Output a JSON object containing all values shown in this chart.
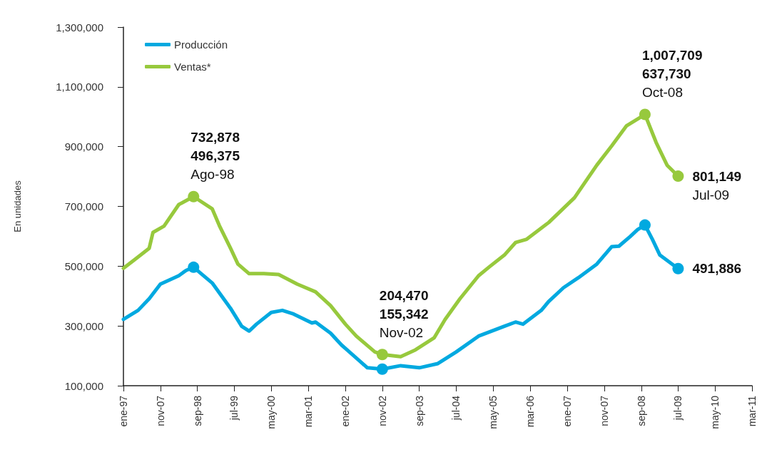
{
  "chart_data": {
    "type": "line",
    "ylabel": "En unidades",
    "legend": "top left",
    "grid": false,
    "marker": "none",
    "line_style": "solid",
    "xlim": [
      "1997-01",
      "2011-03"
    ],
    "xticks": [
      {
        "value": "1997-01",
        "label": "ene-97"
      },
      {
        "value": "1997-11",
        "label": "nov-07"
      },
      {
        "value": "1998-09",
        "label": "sep-98"
      },
      {
        "value": "1999-07",
        "label": "jul-99"
      },
      {
        "value": "2000-05",
        "label": "may-00"
      },
      {
        "value": "2001-03",
        "label": "mar-01"
      },
      {
        "value": "2002-01",
        "label": "ene-02"
      },
      {
        "value": "2002-11",
        "label": "nov-02"
      },
      {
        "value": "2003-09",
        "label": "sep-03"
      },
      {
        "value": "2004-07",
        "label": "jul-04"
      },
      {
        "value": "2005-05",
        "label": "may-05"
      },
      {
        "value": "2006-03",
        "label": "mar-06"
      },
      {
        "value": "2007-01",
        "label": "ene-07"
      },
      {
        "value": "2007-11",
        "label": "nov-07"
      },
      {
        "value": "2008-09",
        "label": "sep-08"
      },
      {
        "value": "2009-07",
        "label": "jul-09"
      },
      {
        "value": "2010-05",
        "label": "may-10"
      },
      {
        "value": "2011-03",
        "label": "mar-11"
      }
    ],
    "ylim": [
      100000,
      1300000
    ],
    "yticks": [
      {
        "value": 100000,
        "label": "100,000"
      },
      {
        "value": 300000,
        "label": "300,000"
      },
      {
        "value": 500000,
        "label": "500,000"
      },
      {
        "value": 700000,
        "label": "700,000"
      },
      {
        "value": 900000,
        "label": "900,000"
      },
      {
        "value": 1100000,
        "label": "1,100,000"
      },
      {
        "value": 1300000,
        "label": "1,300,000"
      }
    ],
    "series": [
      {
        "name": "Producción",
        "color": "#00a9e0",
        "x": [
          "1997-01",
          "1997-05",
          "1997-08",
          "1997-11",
          "1998-04",
          "1998-06",
          "1998-08",
          "1999-01",
          "1999-06",
          "1999-09",
          "1999-11",
          "2000-01",
          "2000-05",
          "2000-08",
          "2000-11",
          "2001-04",
          "2001-05",
          "2001-09",
          "2001-12",
          "2002-01",
          "2002-07",
          "2002-11",
          "2003-04",
          "2003-09",
          "2004-02",
          "2004-07",
          "2005-01",
          "2005-08",
          "2005-11",
          "2006-01",
          "2006-06",
          "2006-08",
          "2006-12",
          "2007-04",
          "2007-09",
          "2008-01",
          "2008-03",
          "2008-06",
          "2008-08",
          "2008-10",
          "2008-12",
          "2009-02",
          "2009-07"
        ],
        "values": [
          322000,
          352000,
          391000,
          440000,
          468000,
          486000,
          496375,
          444000,
          359000,
          299000,
          283000,
          306000,
          345000,
          352000,
          340000,
          310000,
          313000,
          276000,
          236000,
          225000,
          160000,
          155342,
          167000,
          160000,
          174000,
          213000,
          266000,
          299000,
          313000,
          306000,
          352000,
          382000,
          428000,
          461000,
          507000,
          565000,
          567000,
          599000,
          622000,
          637730,
          590000,
          537000,
          491886
        ]
      },
      {
        "name": "Ventas*",
        "color": "#97c93d",
        "x": [
          "1997-01",
          "1997-04",
          "1997-08",
          "1997-09",
          "1997-12",
          "1998-04",
          "1998-08",
          "1999-01",
          "1999-03",
          "1999-06",
          "1999-08",
          "1999-11",
          "2000-03",
          "2000-07",
          "2000-12",
          "2001-05",
          "2001-09",
          "2002-01",
          "2002-04",
          "2002-09",
          "2002-11",
          "2003-04",
          "2003-08",
          "2004-01",
          "2004-04",
          "2004-08",
          "2005-01",
          "2005-04",
          "2005-08",
          "2005-11",
          "2006-02",
          "2006-08",
          "2007-03",
          "2007-09",
          "2008-01",
          "2008-05",
          "2008-10",
          "2009-01",
          "2009-04",
          "2009-07"
        ],
        "values": [
          493000,
          521000,
          560000,
          613000,
          634000,
          706000,
          732878,
          692000,
          636000,
          560000,
          507000,
          475000,
          475000,
          472000,
          440000,
          414000,
          368000,
          306000,
          266000,
          213000,
          204470,
          197000,
          220000,
          260000,
          322000,
          391000,
          468000,
          498000,
          537000,
          579000,
          590000,
          646000,
          729000,
          838000,
          902000,
          969000,
          1007709,
          914000,
          838000,
          801149
        ]
      }
    ],
    "annotations": [
      {
        "text": "732,878\n496,375\nAgo-98",
        "x": "1998-08",
        "y": 732878
      },
      {
        "text": "204,470\n155,342\nNov-02",
        "x": "2002-11",
        "y": 204470
      },
      {
        "text": "1,007,709\n637,730\nOct-08",
        "x": "2008-10",
        "y": 1007709
      },
      {
        "text": "801,149\nJul-09",
        "x": "2009-07",
        "y": 801149
      },
      {
        "text": "491,886",
        "x": "2009-07",
        "y": 491886
      }
    ]
  }
}
